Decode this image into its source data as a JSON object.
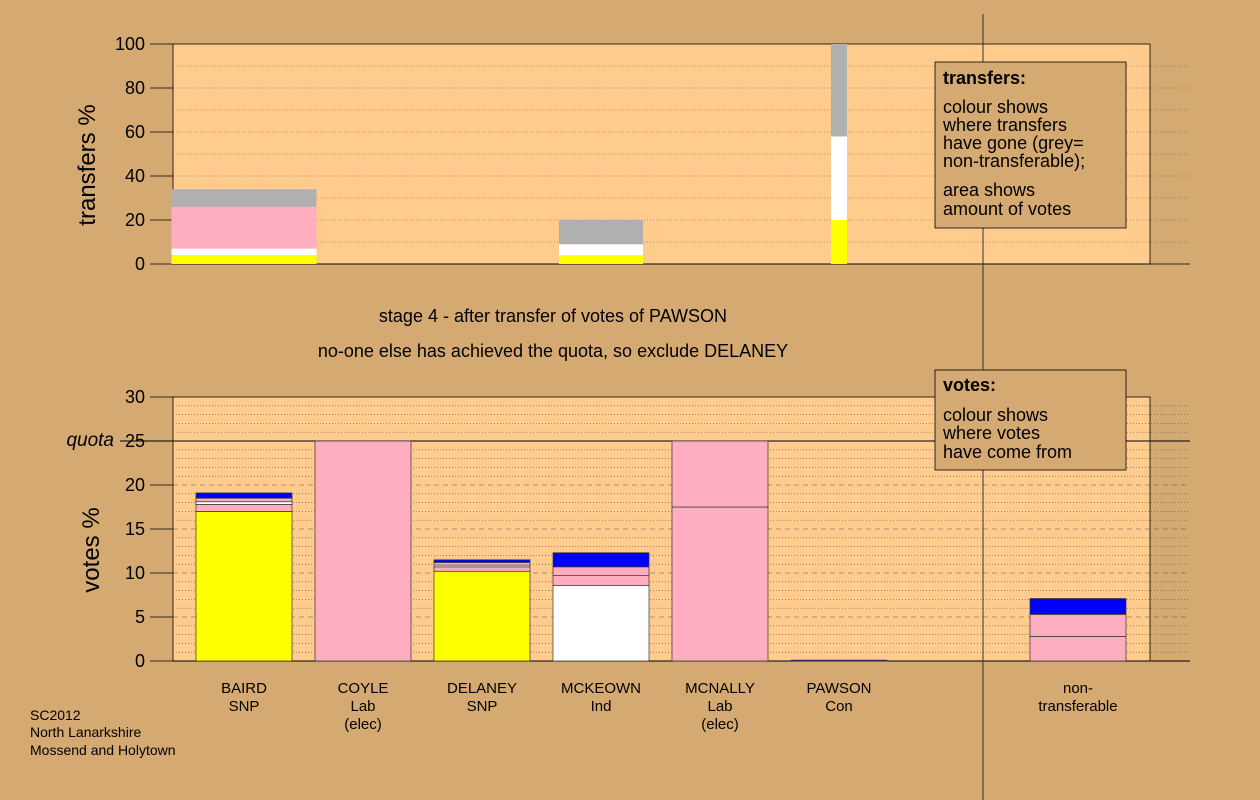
{
  "colors": {
    "background": "#d5a972",
    "plot_bg": "#ffcc8e",
    "legend_bg": "#d5a972",
    "SNP": "#ffff00",
    "Lab": "#ffaec0",
    "Con": "#0000ff",
    "Ind": "#ffffff",
    "nontransferable": "#b0b0b0"
  },
  "captions": {
    "line1": "stage 4 - after transfer of votes of PAWSON",
    "line2": "no-one else has achieved the quota, so exclude DELANEY"
  },
  "footer": [
    "SC2012",
    "North Lanarkshire",
    "Mossend and Holytown"
  ],
  "transfers_legend": {
    "title": "transfers:",
    "lines1": [
      "colour shows",
      "where transfers",
      "have gone (grey=",
      "non-transferable);"
    ],
    "lines2": [
      "area shows",
      "amount of votes"
    ]
  },
  "votes_legend": {
    "title": "votes:",
    "lines": [
      "colour shows",
      "where votes",
      "have come from"
    ]
  },
  "chart_data": [
    {
      "type": "bar",
      "stacked": true,
      "ylabel": "transfers %",
      "ylim": [
        0,
        100
      ],
      "yticks": [
        "0",
        "20",
        "40",
        "60",
        "80",
        "100"
      ],
      "bars": [
        {
          "position": "BAIRD",
          "segments": [
            {
              "source": "SNP",
              "value": 4
            },
            {
              "source": "Ind",
              "value": 3
            },
            {
              "source": "Lab",
              "value": 19
            },
            {
              "source": "nontransferable",
              "value": 8
            }
          ]
        },
        {
          "position": "MCKEOWN",
          "segments": [
            {
              "source": "SNP",
              "value": 4
            },
            {
              "source": "Ind",
              "value": 5
            },
            {
              "source": "nontransferable",
              "value": 11
            }
          ]
        },
        {
          "position": "PAWSON",
          "segments": [
            {
              "source": "SNP",
              "value": 20
            },
            {
              "source": "Ind",
              "value": 38
            },
            {
              "source": "nontransferable",
              "value": 42
            }
          ]
        }
      ]
    },
    {
      "type": "bar",
      "stacked": true,
      "ylabel": "votes %",
      "ylim": [
        0,
        30
      ],
      "yticks": [
        "0",
        "5",
        "10",
        "15",
        "20",
        "25",
        "30"
      ],
      "quota": {
        "label": "quota",
        "value": 25
      },
      "categories": [
        {
          "name": "BAIRD",
          "lines": [
            "BAIRD",
            "SNP"
          ]
        },
        {
          "name": "COYLE",
          "lines": [
            "COYLE",
            "Lab",
            "(elec)"
          ]
        },
        {
          "name": "DELANEY",
          "lines": [
            "DELANEY",
            "SNP"
          ]
        },
        {
          "name": "MCKEOWN",
          "lines": [
            "MCKEOWN",
            "Ind"
          ]
        },
        {
          "name": "MCNALLY",
          "lines": [
            "MCNALLY",
            "Lab",
            "(elec)"
          ]
        },
        {
          "name": "PAWSON",
          "lines": [
            "PAWSON",
            "Con"
          ]
        },
        {
          "name": "non-transferable",
          "lines": [
            "non-",
            "transferable"
          ]
        }
      ],
      "bars": [
        {
          "candidate": "BAIRD",
          "segments": [
            {
              "source": "SNP",
              "value": 17.0
            },
            {
              "source": "Lab",
              "value": 0.8
            },
            {
              "source": "Ind",
              "value": 0.3
            },
            {
              "source": "Lab",
              "value": 0.4
            },
            {
              "source": "Con",
              "value": 0.6
            }
          ]
        },
        {
          "candidate": "COYLE",
          "segments": [
            {
              "source": "Lab",
              "value": 25.0
            }
          ]
        },
        {
          "candidate": "DELANEY",
          "segments": [
            {
              "source": "SNP",
              "value": 10.2
            },
            {
              "source": "Lab",
              "value": 0.5
            },
            {
              "source": "Ind",
              "value": 0.2
            },
            {
              "source": "Lab",
              "value": 0.3
            },
            {
              "source": "Con",
              "value": 0.3
            }
          ]
        },
        {
          "candidate": "MCKEOWN",
          "segments": [
            {
              "source": "Ind",
              "value": 8.6
            },
            {
              "source": "Lab",
              "value": 1.1
            },
            {
              "source": "Lab",
              "value": 1.0
            },
            {
              "source": "Con",
              "value": 1.6
            }
          ]
        },
        {
          "candidate": "MCNALLY",
          "segments": [
            {
              "source": "Lab",
              "value": 17.5
            },
            {
              "source": "Lab",
              "value": 7.5
            }
          ]
        },
        {
          "candidate": "PAWSON",
          "segments": [
            {
              "source": "Con",
              "value": 0.1
            }
          ]
        },
        {
          "candidate": "non-transferable",
          "segments": [
            {
              "source": "Lab",
              "value": 2.8
            },
            {
              "source": "Lab",
              "value": 2.5
            },
            {
              "source": "Con",
              "value": 1.8
            }
          ]
        }
      ]
    }
  ]
}
